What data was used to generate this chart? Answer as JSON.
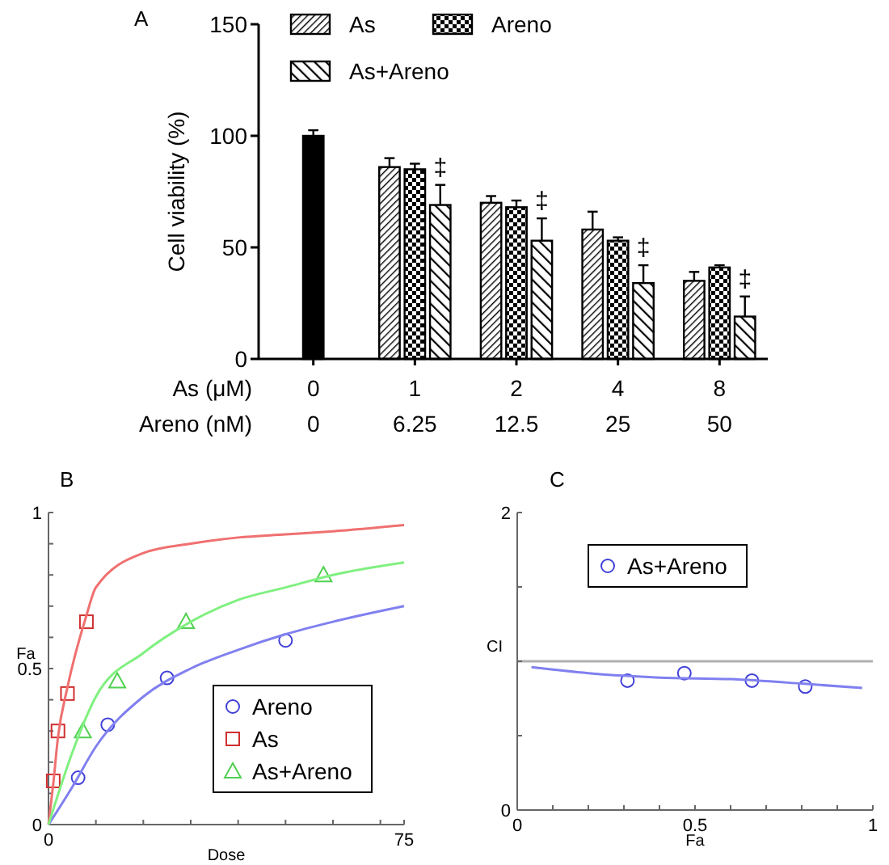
{
  "chart_data": [
    {
      "type": "bar",
      "title": "A",
      "ylabel": "Cell viability (%)",
      "xlabel": "As (μM)\nAreno (nM)",
      "categories": [
        "0\n0",
        "1\n6.25",
        "2\n12.5",
        "4\n25",
        "8\n50"
      ],
      "series": [
        {
          "color": "#000000",
          "values": [
            100,
            null,
            null,
            null,
            null
          ],
          "errors": [
            2.5,
            null,
            null,
            null,
            null
          ]
        },
        {
          "name": "As",
          "color": "#000000",
          "values": [
            null,
            86,
            70,
            58,
            35
          ],
          "errors": [
            null,
            4,
            3,
            8,
            4
          ]
        },
        {
          "name": "Areno",
          "color": "#000000",
          "values": [
            null,
            85,
            68,
            53,
            41
          ],
          "errors": [
            null,
            2.5,
            3,
            1.5,
            1
          ]
        },
        {
          "name": "As+Areno",
          "color": "#000000",
          "values": [
            null,
            69,
            53,
            34,
            19
          ],
          "errors": [
            null,
            9,
            10,
            8,
            9
          ]
        }
      ],
      "ylim": [
        0,
        150
      ],
      "yticks": [
        0,
        50,
        100,
        150
      ],
      "grid": false,
      "legend": "top",
      "annotations": [
        "‡",
        "‡",
        "‡",
        "‡"
      ]
    },
    {
      "type": "scatter",
      "title": "B",
      "xlabel": "Dose",
      "ylabel": "Fa",
      "series": [
        {
          "name": "Areno",
          "color": "#4040d8",
          "marker": "circle",
          "x": [
            6.25,
            12.5,
            25,
            50
          ],
          "values": [
            0.15,
            0.32,
            0.47,
            0.59
          ]
        },
        {
          "name": "As",
          "color": "#d03030",
          "marker": "square",
          "x": [
            1,
            2,
            4,
            8
          ],
          "values": [
            0.14,
            0.3,
            0.42,
            0.65
          ]
        },
        {
          "name": "As+Areno",
          "color": "#50d050",
          "marker": "triangle",
          "x": [
            7.25,
            14.5,
            29,
            58
          ],
          "values": [
            0.3,
            0.46,
            0.65,
            0.8
          ]
        },
        {
          "type": "line",
          "color": "#8080f0",
          "marker": "none",
          "x": [
            0,
            5,
            10,
            20,
            30,
            40,
            50,
            60,
            75
          ],
          "values": [
            0,
            0.12,
            0.25,
            0.41,
            0.5,
            0.56,
            0.61,
            0.65,
            0.7
          ]
        },
        {
          "type": "line",
          "color": "#f07070",
          "marker": "none",
          "x": [
            0,
            1,
            2,
            4,
            8,
            10,
            20,
            30,
            40,
            50,
            60,
            75
          ],
          "values": [
            0,
            0.13,
            0.28,
            0.44,
            0.67,
            0.76,
            0.87,
            0.9,
            0.92,
            0.93,
            0.94,
            0.96
          ]
        },
        {
          "type": "line",
          "color": "#80f080",
          "marker": "none",
          "x": [
            0,
            5,
            10,
            20,
            30,
            40,
            50,
            60,
            75
          ],
          "values": [
            0,
            0.23,
            0.41,
            0.55,
            0.65,
            0.72,
            0.76,
            0.8,
            0.84
          ]
        }
      ],
      "xlim": [
        0,
        75
      ],
      "xticks": [
        0,
        {
          "value": 10,
          "label": null
        },
        {
          "value": 20,
          "label": null
        },
        {
          "value": 30,
          "label": null
        },
        {
          "value": 40,
          "label": null
        },
        {
          "value": 50,
          "label": null
        },
        {
          "value": 60,
          "label": null
        },
        {
          "value": 70,
          "label": null
        },
        75
      ],
      "ylim": [
        0,
        1
      ],
      "yticks": [
        0,
        {
          "value": 0.1,
          "label": null
        },
        {
          "value": 0.2,
          "label": null
        },
        {
          "value": 0.3,
          "label": null
        },
        {
          "value": 0.4,
          "label": null
        },
        0.5,
        {
          "value": 0.6,
          "label": null
        },
        {
          "value": 0.7,
          "label": null
        },
        {
          "value": 0.8,
          "label": null
        },
        {
          "value": 0.9,
          "label": null
        },
        1
      ],
      "grid": false,
      "legend": "bottom right"
    },
    {
      "type": "scatter",
      "title": "C",
      "xlabel": "Fa",
      "ylabel": "CI",
      "series": [
        {
          "name": "As+Areno",
          "color": "#4040d8",
          "marker": "circle",
          "x": [
            0.31,
            0.47,
            0.66,
            0.81
          ],
          "values": [
            0.87,
            0.92,
            0.87,
            0.83
          ]
        },
        {
          "type": "line",
          "color": "#8080f0",
          "marker": "none",
          "x": [
            0.04,
            0.2,
            0.4,
            0.6,
            0.8,
            0.97
          ],
          "values": [
            0.96,
            0.92,
            0.89,
            0.88,
            0.85,
            0.82
          ]
        }
      ],
      "xlim": [
        0,
        1
      ],
      "xticks": [
        0,
        {
          "value": 0.1,
          "label": null
        },
        {
          "value": 0.2,
          "label": null
        },
        {
          "value": 0.3,
          "label": null
        },
        {
          "value": 0.4,
          "label": null
        },
        0.5,
        {
          "value": 0.6,
          "label": null
        },
        {
          "value": 0.7,
          "label": null
        },
        {
          "value": 0.8,
          "label": null
        },
        {
          "value": 0.9,
          "label": null
        },
        1
      ],
      "ylim": [
        0,
        2
      ],
      "yticks": [
        0,
        {
          "value": 0.5,
          "label": null
        },
        {
          "value": 1,
          "label": null
        },
        {
          "value": 1.5,
          "label": null
        },
        2
      ],
      "ref_lines": [
        {
          "axis": "y",
          "value": 1,
          "color": "#b0b0b0"
        }
      ],
      "grid": false,
      "legend": "top left"
    }
  ]
}
